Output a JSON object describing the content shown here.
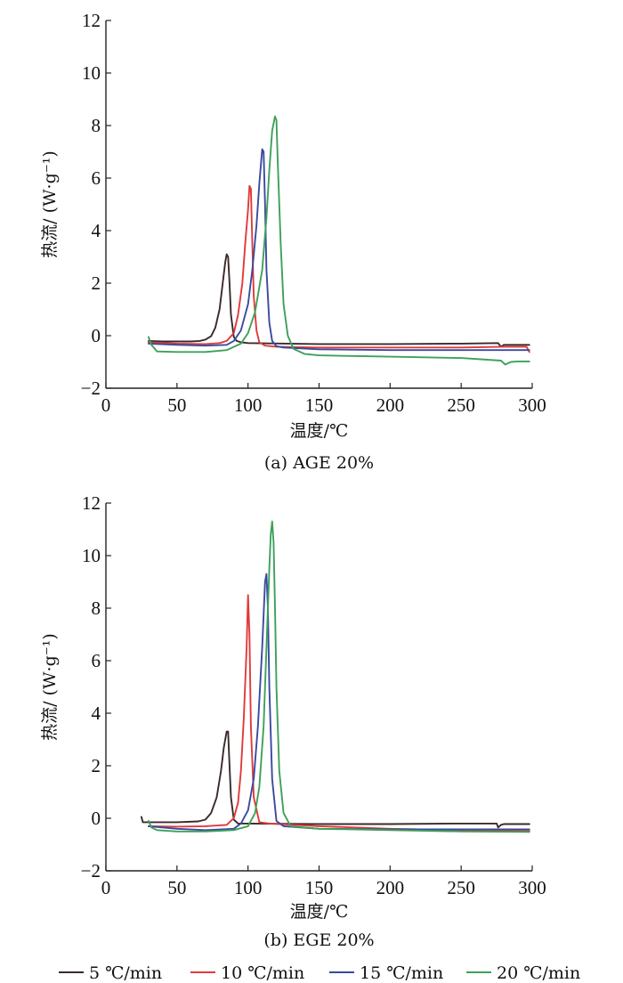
{
  "chart_data": [
    {
      "type": "line",
      "caption": "(a) AGE 20%",
      "xlabel": "温度/℃",
      "ylabel": "热流/ (W·g⁻¹)",
      "xlim": [
        0,
        300
      ],
      "ylim": [
        -2,
        12
      ],
      "xticks": [
        0,
        50,
        100,
        150,
        200,
        250,
        300
      ],
      "yticks": [
        -2,
        0,
        2,
        4,
        6,
        8,
        10,
        12
      ],
      "grid": false,
      "series": [
        {
          "name": "5 ℃/min",
          "x": [
            30,
            40,
            50,
            60,
            66,
            70,
            74,
            77,
            80,
            82,
            84,
            85,
            86,
            87,
            88,
            90,
            92,
            95,
            100,
            150,
            200,
            250,
            276,
            278,
            280,
            290,
            298
          ],
          "y": [
            -0.2,
            -0.22,
            -0.22,
            -0.22,
            -0.2,
            -0.15,
            -0.02,
            0.3,
            1.0,
            1.9,
            2.8,
            3.1,
            3.0,
            2.0,
            0.8,
            -0.05,
            -0.2,
            -0.25,
            -0.28,
            -0.32,
            -0.32,
            -0.3,
            -0.28,
            -0.42,
            -0.35,
            -0.35,
            -0.35
          ]
        },
        {
          "name": "10 ℃/min",
          "x": [
            30,
            50,
            70,
            80,
            85,
            90,
            93,
            96,
            98,
            100,
            101,
            102,
            103,
            104,
            106,
            108,
            112,
            120,
            150,
            200,
            250,
            280,
            296,
            298
          ],
          "y": [
            -0.25,
            -0.3,
            -0.32,
            -0.28,
            -0.2,
            0.1,
            0.8,
            2.0,
            3.5,
            4.8,
            5.7,
            5.6,
            3.5,
            1.5,
            0.2,
            -0.25,
            -0.38,
            -0.42,
            -0.45,
            -0.45,
            -0.45,
            -0.42,
            -0.42,
            -0.62
          ]
        },
        {
          "name": "15 ℃/min",
          "x": [
            30,
            50,
            70,
            85,
            90,
            95,
            100,
            103,
            106,
            108,
            110,
            111,
            112,
            113,
            115,
            117,
            120,
            125,
            150,
            200,
            250,
            280,
            298
          ],
          "y": [
            -0.3,
            -0.35,
            -0.38,
            -0.35,
            -0.2,
            0.2,
            1.2,
            2.5,
            4.2,
            5.8,
            7.1,
            7.0,
            5.0,
            2.5,
            0.5,
            -0.2,
            -0.4,
            -0.45,
            -0.52,
            -0.55,
            -0.55,
            -0.55,
            -0.55
          ]
        },
        {
          "name": "20 ℃/min",
          "x": [
            30,
            32,
            36,
            50,
            70,
            85,
            95,
            100,
            105,
            110,
            113,
            115,
            117,
            119,
            120,
            121,
            123,
            125,
            128,
            132,
            140,
            150,
            200,
            250,
            278,
            281,
            285,
            290,
            298
          ],
          "y": [
            -0.05,
            -0.35,
            -0.6,
            -0.62,
            -0.62,
            -0.55,
            -0.3,
            0.1,
            0.9,
            2.5,
            4.5,
            6.3,
            7.8,
            8.35,
            8.2,
            6.5,
            3.5,
            1.2,
            0.0,
            -0.5,
            -0.7,
            -0.75,
            -0.8,
            -0.85,
            -0.95,
            -1.1,
            -1.0,
            -0.98,
            -0.98
          ]
        }
      ]
    },
    {
      "type": "line",
      "caption": "(b) EGE 20%",
      "xlabel": "温度/℃",
      "ylabel": "热流/ (W·g⁻¹)",
      "xlim": [
        0,
        300
      ],
      "ylim": [
        -2,
        12
      ],
      "xticks": [
        0,
        50,
        100,
        150,
        200,
        250,
        300
      ],
      "yticks": [
        -2,
        0,
        2,
        4,
        6,
        8,
        10,
        12
      ],
      "grid": false,
      "series": [
        {
          "name": "5 ℃/min",
          "x": [
            25,
            26,
            30,
            50,
            65,
            70,
            74,
            78,
            81,
            83,
            85,
            86,
            87,
            88,
            90,
            93,
            100,
            150,
            200,
            250,
            275,
            276,
            278,
            280,
            298
          ],
          "y": [
            0.05,
            -0.15,
            -0.15,
            -0.15,
            -0.12,
            -0.05,
            0.2,
            0.8,
            1.8,
            2.7,
            3.3,
            3.3,
            2.0,
            0.8,
            -0.05,
            -0.2,
            -0.2,
            -0.22,
            -0.22,
            -0.2,
            -0.2,
            -0.35,
            -0.25,
            -0.22,
            -0.22
          ]
        },
        {
          "name": "10 ℃/min",
          "x": [
            30,
            50,
            70,
            85,
            90,
            93,
            95,
            97,
            99,
            100,
            101,
            102,
            104,
            108,
            115,
            150,
            200,
            250,
            298
          ],
          "y": [
            -0.3,
            -0.32,
            -0.3,
            -0.25,
            0.0,
            0.6,
            1.8,
            3.8,
            6.5,
            8.5,
            7.0,
            3.5,
            0.8,
            -0.15,
            -0.2,
            -0.3,
            -0.4,
            -0.45,
            -0.48
          ]
        },
        {
          "name": "15 ℃/min",
          "x": [
            30,
            50,
            70,
            90,
            95,
            100,
            104,
            107,
            110,
            112,
            113,
            114,
            115,
            117,
            120,
            125,
            150,
            200,
            250,
            298
          ],
          "y": [
            -0.3,
            -0.4,
            -0.45,
            -0.4,
            -0.2,
            0.3,
            1.5,
            3.5,
            6.5,
            9.0,
            9.3,
            8.0,
            5.0,
            1.5,
            -0.1,
            -0.3,
            -0.4,
            -0.42,
            -0.42,
            -0.42
          ]
        },
        {
          "name": "20 ℃/min",
          "x": [
            30,
            32,
            36,
            50,
            70,
            90,
            100,
            105,
            108,
            111,
            113,
            115,
            116,
            117,
            118,
            119,
            120,
            122,
            125,
            130,
            150,
            200,
            250,
            298
          ],
          "y": [
            -0.1,
            -0.35,
            -0.45,
            -0.5,
            -0.5,
            -0.45,
            -0.3,
            0.2,
            1.2,
            3.5,
            6.5,
            9.5,
            10.8,
            11.3,
            10.5,
            8.0,
            5.0,
            1.8,
            0.2,
            -0.3,
            -0.4,
            -0.45,
            -0.5,
            -0.52
          ]
        }
      ]
    }
  ],
  "legend": {
    "placement": "bottom",
    "items": [
      {
        "label": "5 ℃/min",
        "color": "#3a2a2a"
      },
      {
        "label": "10 ℃/min",
        "color": "#e03a3a"
      },
      {
        "label": "15 ℃/min",
        "color": "#3a4aa0"
      },
      {
        "label": "20 ℃/min",
        "color": "#3fa05a"
      }
    ]
  }
}
